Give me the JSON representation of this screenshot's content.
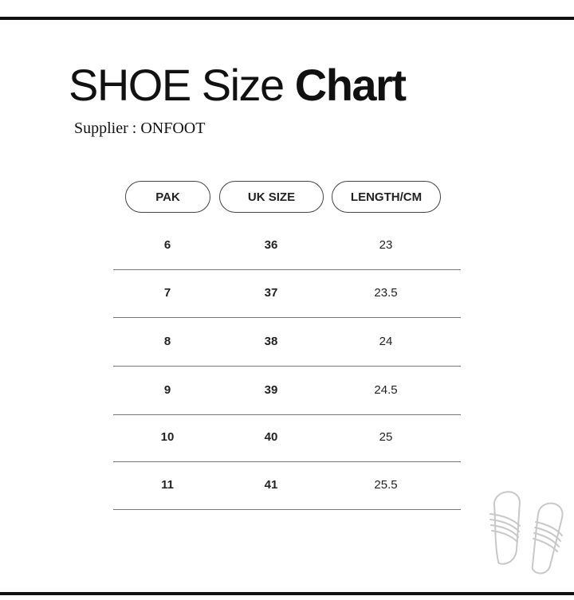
{
  "title": {
    "regular": "SHOE Size ",
    "bold": "Chart"
  },
  "supplier": "Supplier : ONFOOT",
  "table": {
    "headers": [
      "PAK",
      "UK SIZE",
      "LENGTH/CM"
    ],
    "rows": [
      [
        "6",
        "36",
        "23"
      ],
      [
        "7",
        "37",
        "23.5"
      ],
      [
        "8",
        "38",
        "24"
      ],
      [
        "9",
        "39",
        "24.5"
      ],
      [
        "10",
        "40",
        "25"
      ],
      [
        "11",
        "41",
        "25.5"
      ]
    ]
  },
  "icons": {
    "decoration": "slippers-icon"
  }
}
